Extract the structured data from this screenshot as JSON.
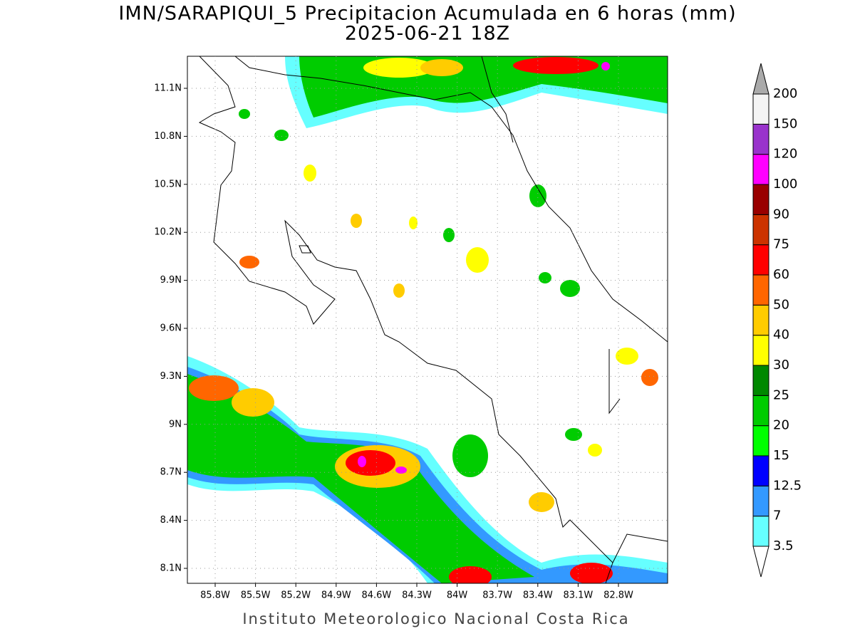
{
  "header": {
    "title": "IMN/SARAPIQUI_5 Precipitacion Acumulada en 6 horas (mm)",
    "subtitle": "2025-06-21 18Z"
  },
  "map": {
    "lat_labels": [
      "11.1N",
      "10.8N",
      "10.5N",
      "10.2N",
      "9.9N",
      "9.6N",
      "9.3N",
      "9N",
      "8.7N",
      "8.4N",
      "8.1N"
    ],
    "lon_labels": [
      "85.8W",
      "85.5W",
      "85.2W",
      "84.9W",
      "84.6W",
      "84.3W",
      "84W",
      "83.7W",
      "83.4W",
      "83.1W",
      "82.8W"
    ]
  },
  "legend": {
    "levels": [
      3.5,
      7,
      12.5,
      15,
      20,
      25,
      30,
      40,
      50,
      60,
      75,
      90,
      100,
      120,
      150,
      200
    ],
    "colors": [
      "#66ffff",
      "#3399ff",
      "#0000ff",
      "#00ff00",
      "#00cc00",
      "#008800",
      "#ffff00",
      "#ffcc00",
      "#ff6600",
      "#ff0000",
      "#cc3300",
      "#990000",
      "#ff00ff",
      "#9933cc",
      "#f4f4f4"
    ],
    "under_color": "#ffffff",
    "over_color": "#aaaaaa"
  },
  "footer": "Instituto Meteorologico Nacional Costa Rica"
}
